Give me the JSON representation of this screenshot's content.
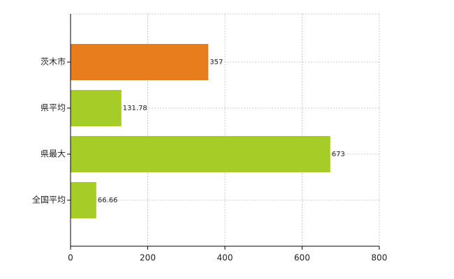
{
  "chart_data": {
    "type": "hbar",
    "categories": [
      "茨木市",
      "県平均",
      "県最大",
      "全国平均"
    ],
    "values": [
      357,
      131.78,
      673,
      66.66
    ],
    "colors": [
      "#e87d1e",
      "#a5cc27",
      "#a5cc27",
      "#a5cc27"
    ],
    "xlim": [
      0,
      800
    ],
    "xticks": [
      0,
      200,
      400,
      600,
      800
    ],
    "grid": true
  }
}
